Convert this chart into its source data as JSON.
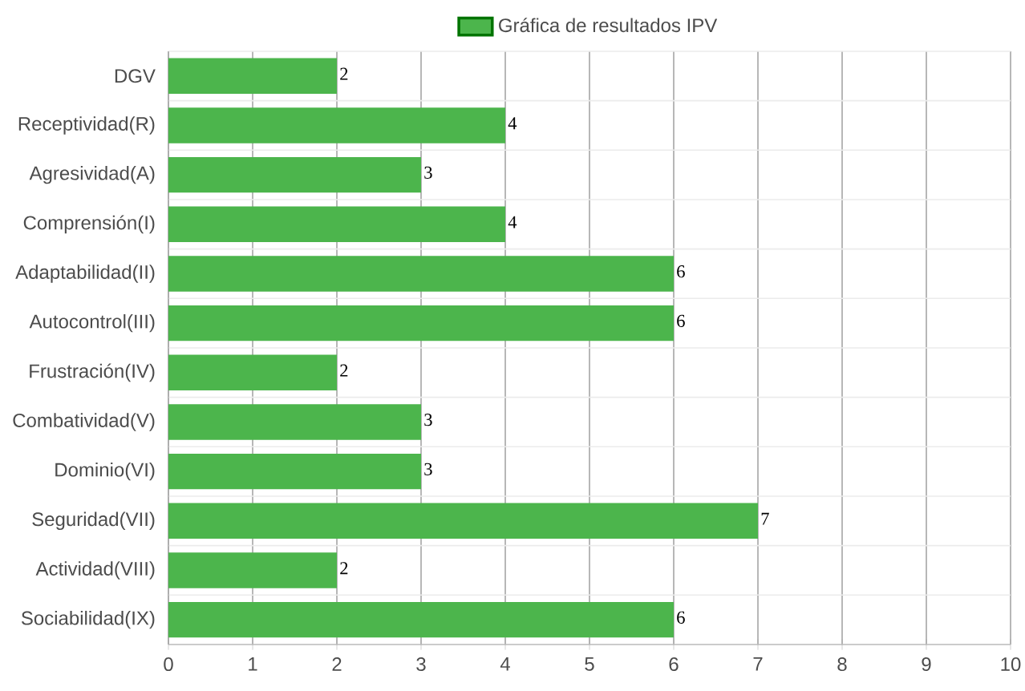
{
  "chart_data": {
    "type": "bar",
    "orientation": "horizontal",
    "categories": [
      "DGV",
      "Receptividad(R)",
      "Agresividad(A)",
      "Comprensión(I)",
      "Adaptabilidad(II)",
      "Autocontrol(III)",
      "Frustración(IV)",
      "Combatividad(V)",
      "Dominio(VI)",
      "Seguridad(VII)",
      "Actividad(VIII)",
      "Sociabilidad(IX)"
    ],
    "series": [
      {
        "name": "Gráfica de resultados IPV",
        "color": "#4cb54c",
        "values": [
          2,
          4,
          3,
          4,
          6,
          6,
          2,
          3,
          3,
          7,
          2,
          6
        ]
      }
    ],
    "xlim": [
      0,
      10
    ],
    "xticks": [
      0,
      1,
      2,
      3,
      4,
      5,
      6,
      7,
      8,
      9,
      10
    ],
    "grid": true,
    "legend": "top",
    "data_labels": true
  }
}
